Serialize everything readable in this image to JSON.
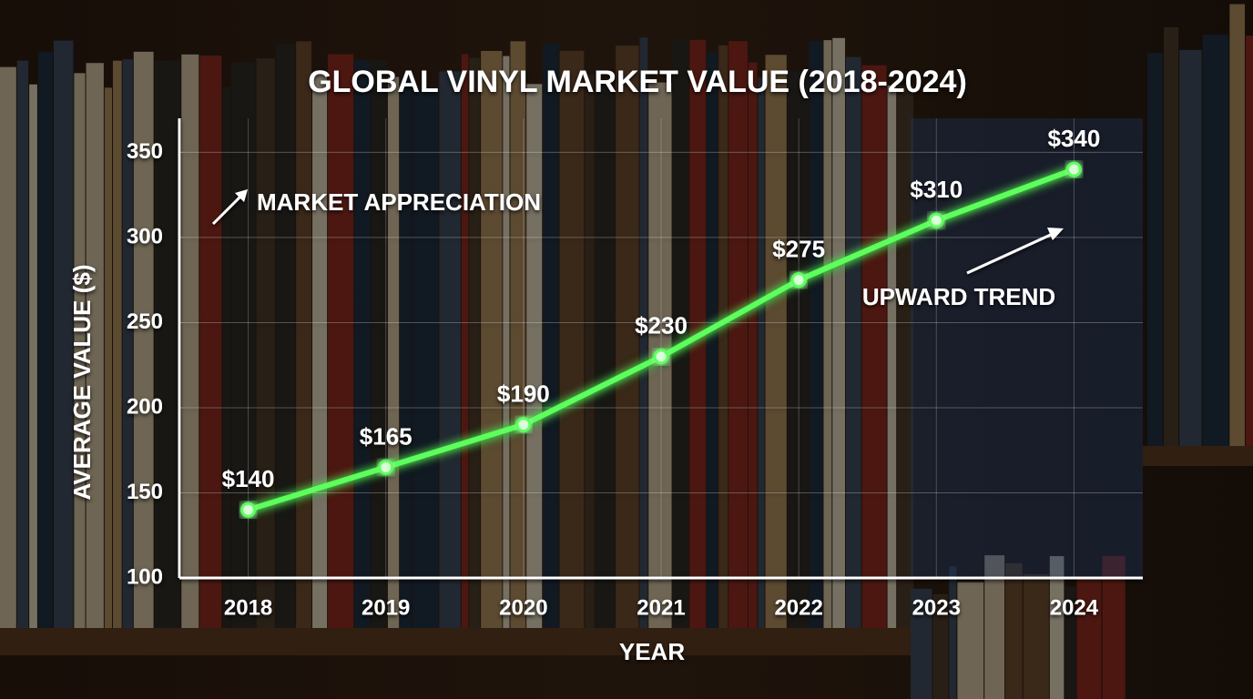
{
  "chart_data": {
    "type": "line",
    "title": "GLOBAL VINYL MARKET VALUE (2018-2024)",
    "x_label": "YEAR",
    "y_label": "AVERAGE VALUE ($)",
    "categories": [
      "2018",
      "2019",
      "2020",
      "2021",
      "2022",
      "2023",
      "2024"
    ],
    "series": [
      {
        "name": "Average Value",
        "color": "#5dff5d",
        "values": [
          140,
          165,
          190,
          230,
          275,
          310,
          340
        ],
        "value_labels": [
          "$140",
          "$165",
          "$190",
          "$230",
          "$275",
          "$310",
          "$340"
        ]
      }
    ],
    "ylim": [
      100,
      370
    ],
    "yticks": [
      100,
      150,
      200,
      250,
      300,
      350
    ],
    "grid": true,
    "annotations": [
      "MARKET APPRECIATION",
      "UPWARD TREND"
    ]
  }
}
